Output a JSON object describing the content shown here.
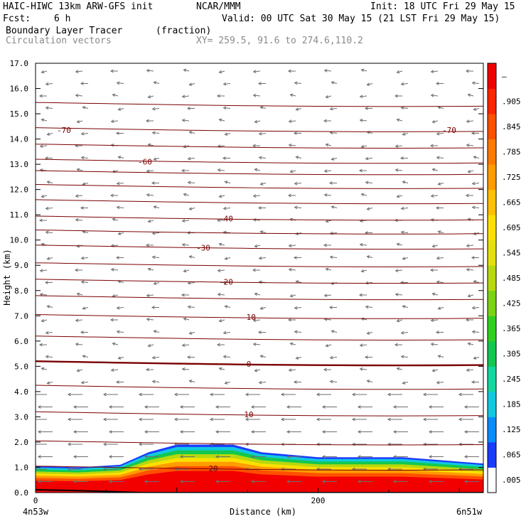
{
  "header": {
    "model": "HAIC-HIWC 13km ARW-GFS init",
    "org": "NCAR/MMM",
    "init": "Init: 18 UTC Fri 29 May 15",
    "fcst_label": "Fcst:",
    "fcst_value": "6 h",
    "valid": "Valid: 00 UTC Sat 30 May 15 (21 LST Fri 29 May 15)",
    "field_name": "Boundary Layer Tracer",
    "field_units": "(fraction)",
    "overlay_name": "Circulation vectors",
    "xy_range": "XY= 259.5, 91.6 to 274.6,110.2"
  },
  "chart_data": {
    "type": "cross-section",
    "xlabel": "Distance (km)",
    "ylabel": "Height (km)",
    "x_start_label": "4n53w",
    "x_end_label": "6n51w",
    "xlim": [
      0,
      317
    ],
    "x_ticks": [
      0,
      200
    ],
    "ylim": [
      0,
      17
    ],
    "y_ticks": [
      "0.0",
      "1.0",
      "2.0",
      "3.0",
      "4.0",
      "5.0",
      "6.0",
      "7.0",
      "8.0",
      "9.0",
      "10.0",
      "11.0",
      "12.0",
      "13.0",
      "14.0",
      "15.0",
      "16.0",
      "17.0"
    ],
    "colorbar": {
      "labels": [
        ".005",
        ".065",
        ".125",
        ".185",
        ".245",
        ".305",
        ".365",
        ".425",
        ".485",
        ".545",
        ".605",
        ".665",
        ".725",
        ".785",
        ".845",
        ".905",
        "–"
      ],
      "colors": [
        "#ffffff",
        "#1a3cff",
        "#0a8cff",
        "#12c8e0",
        "#12d8a0",
        "#12c850",
        "#30d020",
        "#7ad414",
        "#b8d80e",
        "#e4e00c",
        "#fde000",
        "#ffc000",
        "#ff9c00",
        "#ff7a00",
        "#ff5000",
        "#ff2400",
        "#f20000"
      ]
    },
    "temperature_contours": [
      {
        "label": "20",
        "level": 0.95
      },
      {
        "label": "10",
        "level": 3.1
      },
      {
        "label": "0",
        "level": 5.1
      },
      {
        "label": "-10",
        "level": 6.95
      },
      {
        "label": "-20",
        "level": 8.35
      },
      {
        "label": "-30",
        "level": 9.7
      },
      {
        "label": "-40",
        "level": 10.85
      },
      {
        "label": "-60",
        "level": 13.1
      },
      {
        "label": "-70",
        "level": 14.35
      },
      {
        "label": "-70",
        "level": 14.35
      }
    ],
    "boundary_layer_top_km": [
      {
        "x": 0,
        "y": 1.05
      },
      {
        "x": 30,
        "y": 1.0
      },
      {
        "x": 60,
        "y": 1.1
      },
      {
        "x": 80,
        "y": 1.6
      },
      {
        "x": 100,
        "y": 1.9
      },
      {
        "x": 140,
        "y": 1.9
      },
      {
        "x": 160,
        "y": 1.6
      },
      {
        "x": 200,
        "y": 1.4
      },
      {
        "x": 260,
        "y": 1.4
      },
      {
        "x": 317,
        "y": 1.15
      }
    ]
  }
}
